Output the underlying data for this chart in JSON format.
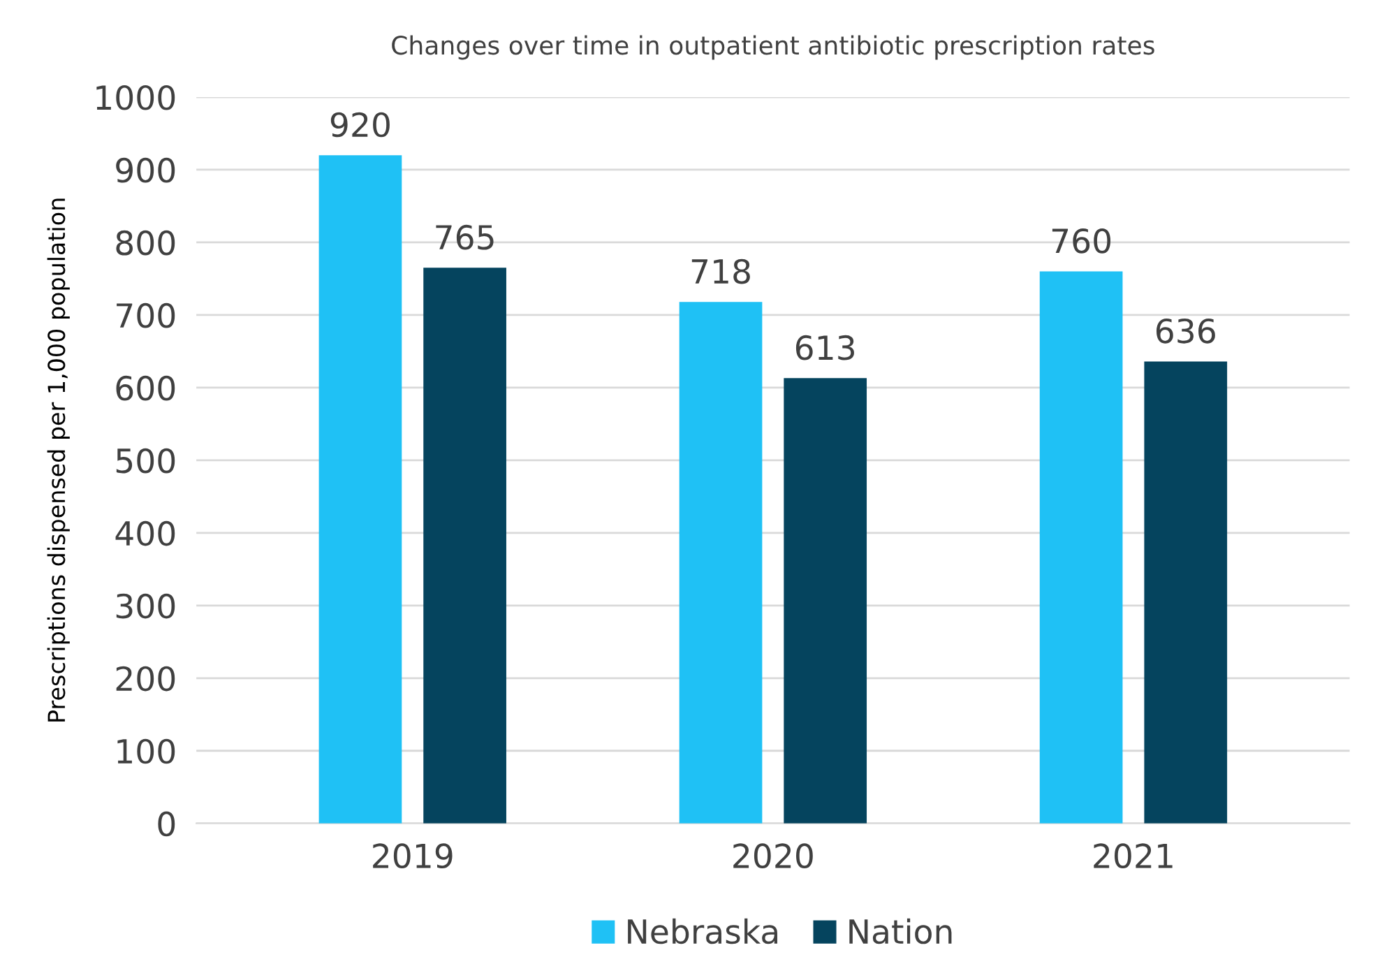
{
  "chart_data": {
    "type": "bar",
    "title": "Changes over time in outpatient antibiotic prescription rates",
    "ylabel": "Prescriptions dispensed per 1,000 population",
    "categories": [
      "2019",
      "2020",
      "2021"
    ],
    "series": [
      {
        "name": "Nebraska",
        "color": "#1fc1f5",
        "values": [
          920,
          718,
          760
        ]
      },
      {
        "name": "Nation",
        "color": "#05445e",
        "values": [
          765,
          613,
          636
        ]
      }
    ],
    "ylim": [
      0,
      1000
    ],
    "yticks": [
      0,
      100,
      200,
      300,
      400,
      500,
      600,
      700,
      800,
      900,
      1000
    ],
    "grid": "y",
    "legend": "bottom",
    "data_labels": true
  }
}
